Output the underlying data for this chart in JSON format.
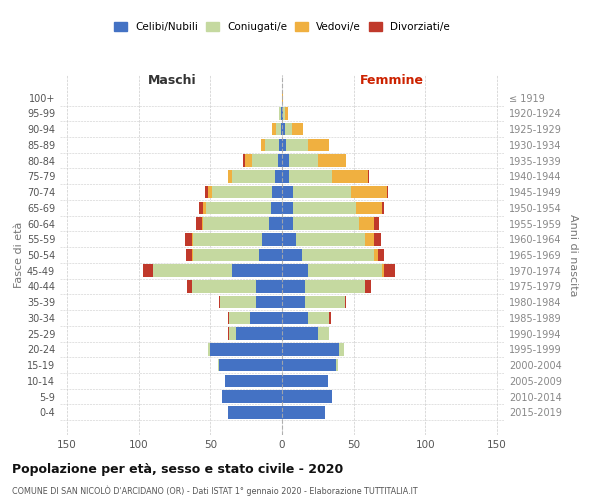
{
  "age_groups": [
    "0-4",
    "5-9",
    "10-14",
    "15-19",
    "20-24",
    "25-29",
    "30-34",
    "35-39",
    "40-44",
    "45-49",
    "50-54",
    "55-59",
    "60-64",
    "65-69",
    "70-74",
    "75-79",
    "80-84",
    "85-89",
    "90-94",
    "95-99",
    "100+"
  ],
  "birth_years": [
    "2015-2019",
    "2010-2014",
    "2005-2009",
    "2000-2004",
    "1995-1999",
    "1990-1994",
    "1985-1989",
    "1980-1984",
    "1975-1979",
    "1970-1974",
    "1965-1969",
    "1960-1964",
    "1955-1959",
    "1950-1954",
    "1945-1949",
    "1940-1944",
    "1935-1939",
    "1930-1934",
    "1925-1929",
    "1920-1924",
    "≤ 1919"
  ],
  "maschi_celibi": [
    38,
    42,
    40,
    44,
    50,
    32,
    22,
    18,
    18,
    35,
    16,
    14,
    9,
    8,
    7,
    5,
    3,
    2,
    1,
    1,
    0
  ],
  "maschi_coniugati": [
    0,
    0,
    0,
    1,
    2,
    5,
    15,
    25,
    45,
    55,
    46,
    48,
    46,
    45,
    42,
    30,
    18,
    10,
    3,
    1,
    0
  ],
  "maschi_vedovi": [
    0,
    0,
    0,
    0,
    0,
    0,
    0,
    0,
    0,
    0,
    1,
    1,
    1,
    2,
    3,
    3,
    5,
    3,
    3,
    0,
    0
  ],
  "maschi_divorziati": [
    0,
    0,
    0,
    0,
    0,
    1,
    1,
    1,
    3,
    7,
    4,
    5,
    4,
    3,
    2,
    0,
    1,
    0,
    0,
    0,
    0
  ],
  "femmine_celibi": [
    30,
    35,
    32,
    38,
    40,
    25,
    18,
    16,
    16,
    18,
    14,
    10,
    8,
    8,
    8,
    5,
    5,
    3,
    2,
    1,
    0
  ],
  "femmine_coniugati": [
    0,
    0,
    0,
    1,
    3,
    8,
    15,
    28,
    42,
    52,
    50,
    48,
    46,
    44,
    40,
    30,
    20,
    15,
    5,
    1,
    0
  ],
  "femmine_vedovi": [
    0,
    0,
    0,
    0,
    0,
    0,
    0,
    0,
    0,
    1,
    3,
    6,
    10,
    18,
    25,
    25,
    20,
    15,
    8,
    2,
    1
  ],
  "femmine_divorziati": [
    0,
    0,
    0,
    0,
    0,
    0,
    1,
    1,
    4,
    8,
    4,
    5,
    4,
    1,
    1,
    1,
    0,
    0,
    0,
    0,
    0
  ],
  "color_celibi": "#4472c4",
  "color_coniugati": "#c5d9a0",
  "color_vedovi": "#f0b040",
  "color_divorziati": "#c0392b",
  "title": "Popolazione per età, sesso e stato civile - 2020",
  "subtitle": "COMUNE DI SAN NICOLÒ D'ARCIDANO (OR) - Dati ISTAT 1° gennaio 2020 - Elaborazione TUTTITALIA.IT",
  "xlabel_left": "Maschi",
  "xlabel_right": "Femmine",
  "ylabel_left": "Fasce di età",
  "ylabel_right": "Anni di nascita",
  "xlim": 155,
  "background_color": "#ffffff",
  "grid_color": "#cccccc"
}
